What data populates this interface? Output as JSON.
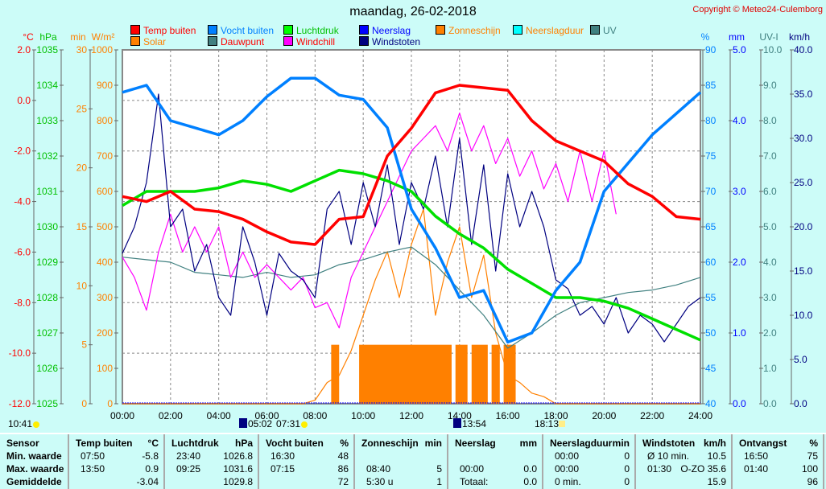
{
  "title": "maandag, 26-02-2018",
  "copyright": "Copyright © Meteo24-Culemborg",
  "legend": [
    {
      "label": "Temp buiten",
      "color": "#ff0000",
      "text_color": "#ff0000"
    },
    {
      "label": "Vocht buiten",
      "color": "#0080ff",
      "text_color": "#0080ff"
    },
    {
      "label": "Luchtdruk",
      "color": "#00ff00",
      "text_color": "#00c000"
    },
    {
      "label": "Neerslag",
      "color": "#0000ff",
      "text_color": "#0000ff"
    },
    {
      "label": "Zonneschijn",
      "color": "#ff8000",
      "text_color": "#ff8000"
    },
    {
      "label": "Neerslagduur",
      "color": "#00ffff",
      "text_color": "#ff8000"
    },
    {
      "label": "UV",
      "color": "#408080",
      "text_color": "#408080"
    },
    {
      "label": "Solar",
      "color": "#ff8000",
      "text_color": "#ff8000"
    },
    {
      "label": "Dauwpunt",
      "color": "#408080",
      "text_color": "#ff0000"
    },
    {
      "label": "Windchill",
      "color": "#ff00ff",
      "text_color": "#ff0000"
    },
    {
      "label": "Windstoten",
      "color": "#000080",
      "text_color": "#000080"
    }
  ],
  "chart_data": {
    "type": "line",
    "title": "maandag, 26-02-2018",
    "x_ticks": [
      "00:00",
      "02:00",
      "04:00",
      "06:00",
      "08:00",
      "10:00",
      "12:00",
      "14:00",
      "16:00",
      "18:00",
      "20:00",
      "22:00",
      "24:00"
    ],
    "xlim": [
      0,
      24
    ],
    "axes": {
      "temp": {
        "unit": "°C",
        "range": [
          -12,
          2
        ],
        "ticks": [
          "2.0",
          "0.0",
          "-2.0",
          "-4.0",
          "-6.0",
          "-8.0",
          "-10.0",
          "-12.0"
        ],
        "color": "#ff0000"
      },
      "pressure": {
        "unit": "hPa",
        "range": [
          1025,
          1035
        ],
        "ticks": [
          "1035",
          "1034",
          "1033",
          "1032",
          "1031",
          "1030",
          "1029",
          "1028",
          "1027",
          "1026",
          "1025"
        ],
        "color": "#00c000"
      },
      "minutes": {
        "unit": "min",
        "range": [
          0,
          30
        ],
        "ticks": [
          "30",
          "25",
          "20",
          "15",
          "10",
          "5",
          "0"
        ],
        "color": "#ff8000"
      },
      "solar": {
        "unit": "W/m²",
        "range": [
          0,
          1000
        ],
        "ticks": [
          "1000",
          "900",
          "800",
          "700",
          "600",
          "500",
          "400",
          "300",
          "200",
          "100",
          "0"
        ],
        "color": "#ff8000"
      },
      "humidity": {
        "unit": "%",
        "range": [
          40,
          90
        ],
        "ticks": [
          "90",
          "85",
          "80",
          "75",
          "70",
          "65",
          "60",
          "55",
          "50",
          "45",
          "40"
        ],
        "color": "#0080ff"
      },
      "rain": {
        "unit": "mm",
        "range": [
          0,
          5
        ],
        "ticks": [
          "5.0",
          "4.0",
          "3.0",
          "2.0",
          "1.0",
          "0.0"
        ],
        "color": "#0000ff"
      },
      "uv": {
        "unit": "UV-I",
        "range": [
          0,
          10
        ],
        "ticks": [
          "10.0",
          "9.0",
          "8.0",
          "7.0",
          "6.0",
          "5.0",
          "4.0",
          "3.0",
          "2.0",
          "1.0",
          "0.0"
        ],
        "color": "#408080"
      },
      "wind": {
        "unit": "km/h",
        "range": [
          0,
          40
        ],
        "ticks": [
          "40.0",
          "35.0",
          "30.0",
          "25.0",
          "20.0",
          "15.0",
          "10.0",
          "5.0",
          "0.0"
        ],
        "color": "#000080"
      }
    },
    "series": [
      {
        "name": "Zonneschijn",
        "axis": "minutes",
        "type": "bar",
        "color": "#ff8000",
        "bars": [
          {
            "start": 8.67,
            "end": 9.0,
            "value": 5
          },
          {
            "start": 9.83,
            "end": 13.67,
            "value": 5
          },
          {
            "start": 13.83,
            "end": 14.33,
            "value": 5
          },
          {
            "start": 14.5,
            "end": 15.17,
            "value": 5
          },
          {
            "start": 15.33,
            "end": 15.67,
            "value": 5
          },
          {
            "start": 15.83,
            "end": 16.33,
            "value": 5
          }
        ]
      },
      {
        "name": "Solar",
        "axis": "solar",
        "color": "#ff8000",
        "step": 0.5,
        "values": [
          0,
          0,
          0,
          0,
          0,
          0,
          0,
          0,
          0,
          0,
          0,
          0,
          0,
          0,
          0,
          0,
          10,
          60,
          80,
          150,
          250,
          350,
          430,
          300,
          450,
          550,
          250,
          400,
          500,
          300,
          420,
          200,
          80,
          60,
          30,
          20,
          0,
          0,
          0,
          0,
          0,
          0,
          0,
          0,
          0,
          0,
          0,
          0,
          0
        ]
      },
      {
        "name": "Dauwpunt",
        "axis": "temp",
        "color": "#408080",
        "step": 1,
        "values": [
          -6.2,
          -6.3,
          -6.4,
          -6.8,
          -6.9,
          -7,
          -6.8,
          -7,
          -6.9,
          -6.5,
          -6.3,
          -6,
          -5.8,
          -6.5,
          -7.5,
          -8.5,
          -9.8,
          -9.2,
          -8.5,
          -8,
          -7.8,
          -7.6,
          -7.5,
          -7.3,
          -7.0
        ]
      },
      {
        "name": "Windchill",
        "axis": "temp",
        "color": "#ff00ff",
        "step": 0.5,
        "values": [
          -6.2,
          -7,
          -8.3,
          -6,
          -4.5,
          -6,
          -5,
          -6,
          -5,
          -7,
          -6,
          -7,
          -6.5,
          -7,
          -7.5,
          -7,
          -8.2,
          -8,
          -9,
          -7,
          -6,
          -5,
          -4,
          -3,
          -2,
          -1.5,
          -1,
          -2,
          -0.5,
          -2,
          -1,
          -2.5,
          -1.5,
          -3,
          -2,
          -3.5,
          -2.5,
          -4,
          -2,
          -4,
          -2,
          -4.5,
          null,
          null,
          null,
          null,
          null,
          null,
          null
        ]
      },
      {
        "name": "Windstoten",
        "axis": "wind",
        "color": "#000080",
        "step": 0.5,
        "values": [
          17,
          20,
          25,
          35,
          20,
          22,
          15,
          18,
          12,
          10,
          20,
          16,
          10,
          17,
          15,
          14,
          12,
          22,
          24,
          18,
          25,
          20,
          27,
          18,
          25,
          22,
          28,
          20,
          30,
          18,
          27,
          15,
          26,
          20,
          24,
          20,
          14,
          13,
          10,
          11,
          9,
          12,
          8,
          10,
          9,
          7,
          9,
          11,
          12
        ]
      },
      {
        "name": "Luchtdruk",
        "axis": "pressure",
        "color": "#00e000",
        "step": 1,
        "values": [
          1030.6,
          1031,
          1031,
          1031,
          1031.1,
          1031.3,
          1031.2,
          1031,
          1031.3,
          1031.6,
          1031.5,
          1031.3,
          1031,
          1030.3,
          1029.8,
          1029.4,
          1028.8,
          1028.4,
          1028,
          1028,
          1027.9,
          1027.7,
          1027.4,
          1027.1,
          1026.8
        ]
      },
      {
        "name": "Vocht buiten",
        "axis": "humidity",
        "color": "#0080ff",
        "step": 1,
        "values": [
          84,
          85,
          80,
          79,
          78,
          80,
          83.4,
          86,
          86,
          83.6,
          83,
          79,
          67.5,
          62,
          55,
          56,
          48.7,
          50,
          56,
          60,
          70,
          74,
          78,
          81,
          84
        ]
      },
      {
        "name": "Temp buiten",
        "axis": "temp",
        "color": "#ff0000",
        "step": 1,
        "values": [
          -3.8,
          -4.0,
          -3.6,
          -4.3,
          -4.4,
          -4.7,
          -5.2,
          -5.6,
          -5.7,
          -4.7,
          -4.6,
          -2.2,
          -1.1,
          0.3,
          0.6,
          0.5,
          0.4,
          -0.8,
          -1.6,
          -2.0,
          -2.4,
          -3.3,
          -3.8,
          -4.6,
          -4.7
        ]
      }
    ]
  },
  "astro": {
    "moonrise": "10:41",
    "moonset": "05:02",
    "sunrise": "07:31",
    "moon_transit": "13:54",
    "sunset": "18:13"
  },
  "table": {
    "columns": [
      {
        "header": "Sensor",
        "unit": "",
        "rows": [
          [
            "Min. waarde",
            ""
          ],
          [
            "Max. waarde",
            ""
          ],
          [
            "Gemiddelde",
            ""
          ]
        ]
      },
      {
        "header": "Temp buiten",
        "unit": "°C",
        "rows": [
          [
            "07:50",
            "-5.8"
          ],
          [
            "13:50",
            "0.9"
          ],
          [
            "",
            "-3.04"
          ]
        ]
      },
      {
        "header": "Luchtdruk",
        "unit": "hPa",
        "rows": [
          [
            "23:40",
            "1026.8"
          ],
          [
            "09:25",
            "1031.6"
          ],
          [
            "",
            "1029.8"
          ]
        ]
      },
      {
        "header": "Vocht buiten",
        "unit": "%",
        "rows": [
          [
            "16:30",
            "48"
          ],
          [
            "07:15",
            "86"
          ],
          [
            "",
            "72"
          ]
        ]
      },
      {
        "header": "Zonneschijn",
        "unit": "min",
        "rows": [
          [
            "",
            ""
          ],
          [
            "08:40",
            "5"
          ],
          [
            "5:30 u",
            "1"
          ]
        ]
      },
      {
        "header": "Neerslag",
        "unit": "mm",
        "rows": [
          [
            "",
            ""
          ],
          [
            "00:00",
            "0.0"
          ],
          [
            "Totaal:",
            "0.0"
          ]
        ]
      },
      {
        "header": "Neerslagduur",
        "unit": "min",
        "rows": [
          [
            "00:00",
            "0"
          ],
          [
            "00:00",
            "0"
          ],
          [
            "0 min.",
            "0"
          ]
        ]
      },
      {
        "header": "Windstoten",
        "unit": "km/h",
        "rows": [
          [
            "Ø 10 min.",
            "10.5"
          ],
          [
            "01:30",
            "O-ZO 35.6"
          ],
          [
            "",
            "15.9"
          ]
        ]
      },
      {
        "header": "Ontvangst",
        "unit": "%",
        "rows": [
          [
            "16:50",
            "75"
          ],
          [
            "01:40",
            "100"
          ],
          [
            "",
            "96"
          ]
        ]
      }
    ]
  }
}
